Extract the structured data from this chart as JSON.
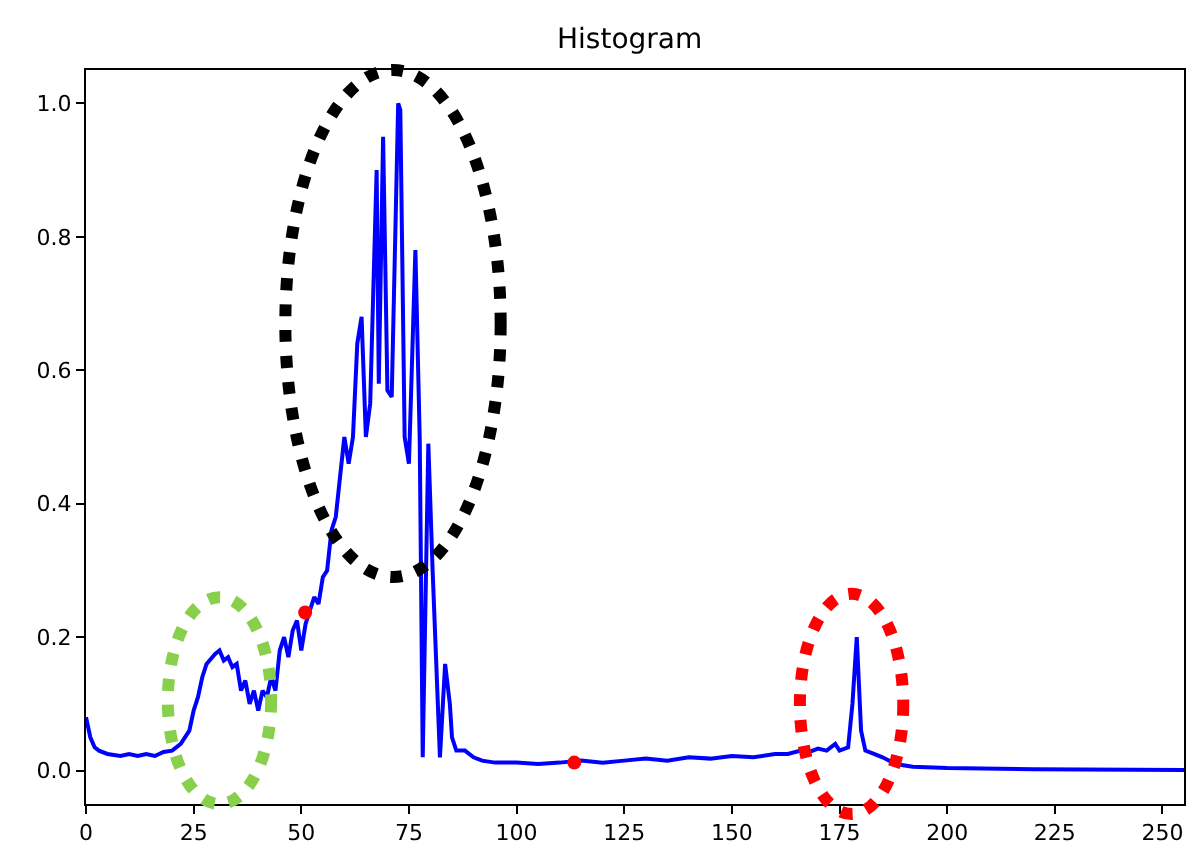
{
  "chart_data": {
    "type": "line",
    "title": "Histogram",
    "x": [
      0,
      1,
      2,
      3,
      5,
      8,
      10,
      12,
      14,
      16,
      18,
      20,
      22,
      24,
      25,
      26,
      27,
      28,
      30,
      31,
      32,
      33,
      34,
      35,
      36,
      37,
      38,
      39,
      40,
      41,
      42,
      43,
      44,
      45,
      46,
      47,
      48,
      49,
      50,
      51,
      52,
      53,
      54,
      55,
      56,
      57,
      58,
      59,
      60,
      61,
      62,
      63,
      64,
      65,
      66,
      67.5,
      68,
      69,
      70,
      71,
      72.5,
      73,
      74,
      75,
      76.5,
      77.5,
      78.2,
      79.5,
      80.5,
      82.2,
      83.4,
      84.5,
      85,
      86,
      88,
      90,
      92,
      95,
      100,
      105,
      110,
      115,
      120,
      125,
      130,
      135,
      140,
      145,
      150,
      155,
      160,
      163,
      166,
      168,
      170,
      172,
      174,
      175,
      177,
      178,
      179,
      180,
      181,
      183,
      185,
      188,
      192,
      200,
      220,
      255
    ],
    "series": [
      {
        "color": "#0000ff",
        "marker": "none",
        "line_style": "solid",
        "values": [
          0.08,
          0.05,
          0.035,
          0.03,
          0.025,
          0.022,
          0.025,
          0.022,
          0.025,
          0.022,
          0.028,
          0.03,
          0.04,
          0.06,
          0.09,
          0.11,
          0.14,
          0.16,
          0.175,
          0.18,
          0.165,
          0.17,
          0.155,
          0.16,
          0.12,
          0.135,
          0.1,
          0.12,
          0.09,
          0.12,
          0.11,
          0.14,
          0.12,
          0.18,
          0.2,
          0.17,
          0.21,
          0.225,
          0.18,
          0.22,
          0.24,
          0.26,
          0.25,
          0.29,
          0.3,
          0.36,
          0.38,
          0.44,
          0.5,
          0.46,
          0.5,
          0.64,
          0.68,
          0.5,
          0.55,
          0.9,
          0.58,
          0.95,
          0.57,
          0.56,
          1.0,
          0.99,
          0.5,
          0.46,
          0.78,
          0.5,
          0.02,
          0.49,
          0.3,
          0.02,
          0.16,
          0.1,
          0.05,
          0.03,
          0.03,
          0.02,
          0.015,
          0.012,
          0.012,
          0.01,
          0.012,
          0.015,
          0.012,
          0.015,
          0.018,
          0.015,
          0.02,
          0.018,
          0.022,
          0.02,
          0.025,
          0.025,
          0.03,
          0.028,
          0.033,
          0.03,
          0.04,
          0.03,
          0.035,
          0.1,
          0.2,
          0.06,
          0.03,
          0.025,
          0.02,
          0.01,
          0.006,
          0.004,
          0.002,
          0.001
        ]
      },
      {
        "type": "scatter",
        "color": "#ff0000",
        "marker": "circle",
        "x": [
          50.9,
          113.4
        ],
        "values": [
          0.237,
          0.012
        ]
      }
    ],
    "xlim": [
      0,
      255
    ],
    "ylim": [
      -0.05,
      1.05
    ],
    "xticks": [
      0,
      25,
      50,
      75,
      100,
      125,
      150,
      175,
      200,
      225,
      250
    ],
    "yticks": [
      {
        "value": 0,
        "label": "0.0"
      },
      {
        "value": 0.2,
        "label": "0.2"
      },
      {
        "value": 0.4,
        "label": "0.4"
      },
      {
        "value": 0.6,
        "label": "0.6"
      },
      {
        "value": 0.8,
        "label": "0.8"
      },
      {
        "value": 1,
        "label": "1.0"
      }
    ]
  }
}
